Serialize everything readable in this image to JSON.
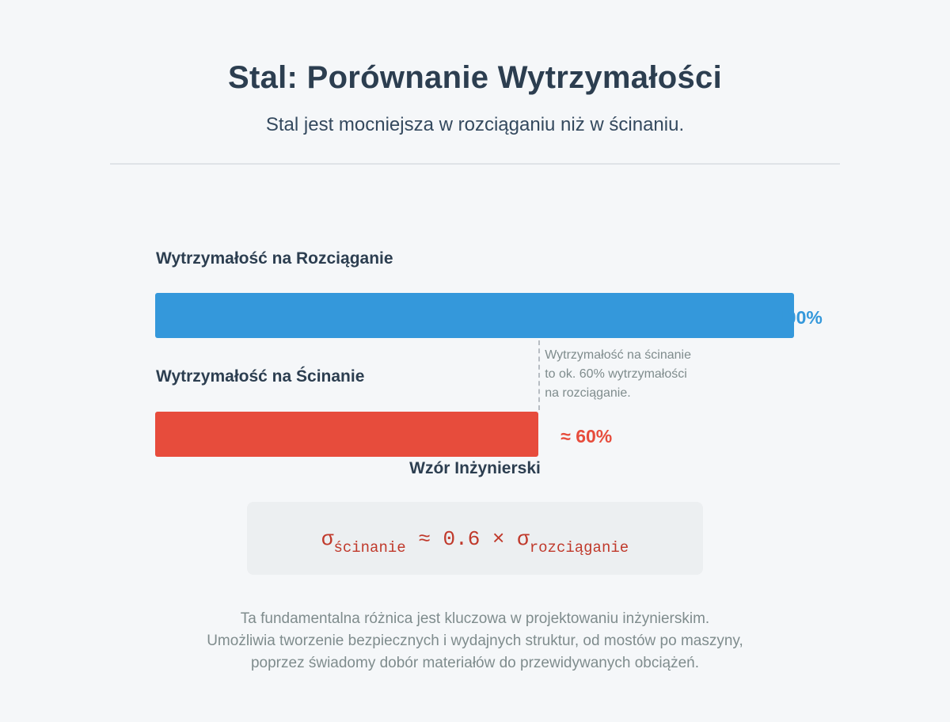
{
  "title": "Stal: Porównanie Wytrzymałości",
  "subtitle": "Stal jest mocniejsza w rozciąganiu niż w ścinaniu.",
  "chart_data": {
    "type": "bar",
    "orientation": "horizontal",
    "categories": [
      "Wytrzymałość na Rozciąganie",
      "Wytrzymałość na Ścinanie"
    ],
    "values": [
      100,
      60
    ],
    "value_labels": [
      "100%",
      "≈ 60%"
    ],
    "unit": "%",
    "xlim": [
      0,
      100
    ],
    "colors": [
      "#3498db",
      "#e74c3c"
    ],
    "grid": false,
    "annotation": [
      "Wytrzymałość na ścinanie",
      "to ok. 60% wytrzymałości",
      "na rozciąganie."
    ]
  },
  "formula": {
    "heading": "Wzór Inżynierski",
    "lhs_symbol": "σ",
    "lhs_subscript": "ścinanie",
    "operator": "≈",
    "coefficient": "0.6",
    "times": "×",
    "rhs_symbol": "σ",
    "rhs_subscript": "rozciąganie"
  },
  "footer": [
    "Ta fundamentalna różnica jest kluczowa w projektowaniu inżynierskim.",
    "Umożliwia tworzenie bezpiecznych i wydajnych struktur, od mostów po maszyny,",
    "poprzez świadomy dobór materiałów do przewidywanych obciążeń."
  ]
}
